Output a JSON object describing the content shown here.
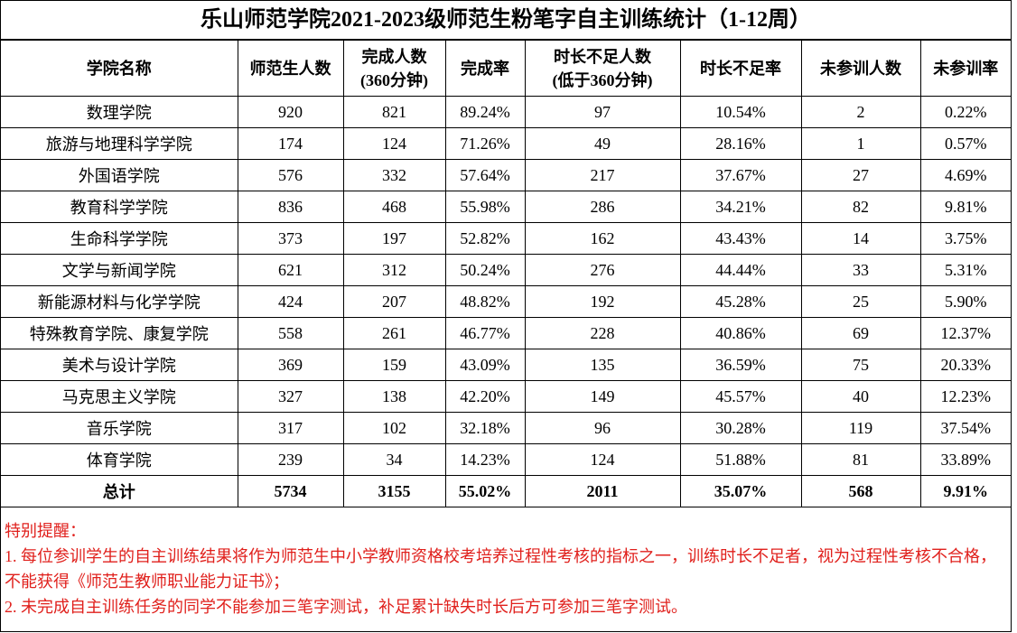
{
  "title": "乐山师范学院2021-2023级师范生粉笔字自主训练统计（1-12周）",
  "table": {
    "header": [
      [
        "学院名称"
      ],
      [
        "师范生人数"
      ],
      [
        "完成人数",
        "(360分钟)"
      ],
      [
        "完成率"
      ],
      [
        "时长不足人数",
        "(低于360分钟)"
      ],
      [
        "时长不足率"
      ],
      [
        "未参训人数"
      ],
      [
        "未参训率"
      ]
    ],
    "rows": [
      [
        "数理学院",
        "920",
        "821",
        "89.24%",
        "97",
        "10.54%",
        "2",
        "0.22%"
      ],
      [
        "旅游与地理科学学院",
        "174",
        "124",
        "71.26%",
        "49",
        "28.16%",
        "1",
        "0.57%"
      ],
      [
        "外国语学院",
        "576",
        "332",
        "57.64%",
        "217",
        "37.67%",
        "27",
        "4.69%"
      ],
      [
        "教育科学学院",
        "836",
        "468",
        "55.98%",
        "286",
        "34.21%",
        "82",
        "9.81%"
      ],
      [
        "生命科学学院",
        "373",
        "197",
        "52.82%",
        "162",
        "43.43%",
        "14",
        "3.75%"
      ],
      [
        "文学与新闻学院",
        "621",
        "312",
        "50.24%",
        "276",
        "44.44%",
        "33",
        "5.31%"
      ],
      [
        "新能源材料与化学学院",
        "424",
        "207",
        "48.82%",
        "192",
        "45.28%",
        "25",
        "5.90%"
      ],
      [
        "特殊教育学院、康复学院",
        "558",
        "261",
        "46.77%",
        "228",
        "40.86%",
        "69",
        "12.37%"
      ],
      [
        "美术与设计学院",
        "369",
        "159",
        "43.09%",
        "135",
        "36.59%",
        "75",
        "20.33%"
      ],
      [
        "马克思主义学院",
        "327",
        "138",
        "42.20%",
        "149",
        "45.57%",
        "40",
        "12.23%"
      ],
      [
        "音乐学院",
        "317",
        "102",
        "32.18%",
        "96",
        "30.28%",
        "119",
        "37.54%"
      ],
      [
        "体育学院",
        "239",
        "34",
        "14.23%",
        "124",
        "51.88%",
        "81",
        "33.89%"
      ]
    ],
    "total": [
      "总计",
      "5734",
      "3155",
      "55.02%",
      "2011",
      "35.07%",
      "568",
      "9.91%"
    ]
  },
  "notes": {
    "label": "特别提醒：",
    "items": [
      "1. 每位参训学生的自主训练结果将作为师范生中小学教师资格校考培养过程性考核的指标之一，训练时长不足者，视为过程性考核不合格，不能获得《师范生教师职业能力证书》；",
      "2. 未完成自主训练任务的同学不能参加三笔字测试，补足累计缺失时长后方可参加三笔字测试。"
    ]
  }
}
